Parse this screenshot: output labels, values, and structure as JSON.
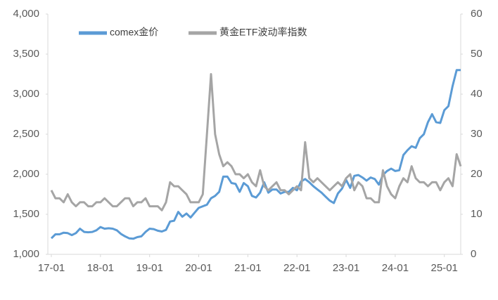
{
  "chart_data": {
    "type": "line",
    "categories": [
      "17-01",
      null,
      null,
      null,
      null,
      null,
      null,
      null,
      null,
      null,
      null,
      null,
      "18-01",
      null,
      null,
      null,
      null,
      null,
      null,
      null,
      null,
      null,
      null,
      null,
      "19-01",
      null,
      null,
      null,
      null,
      null,
      null,
      null,
      null,
      null,
      null,
      null,
      "20-01",
      null,
      null,
      null,
      null,
      null,
      null,
      null,
      null,
      null,
      null,
      null,
      "21-01",
      null,
      null,
      null,
      null,
      null,
      null,
      null,
      null,
      null,
      null,
      null,
      "22-01",
      null,
      null,
      null,
      null,
      null,
      null,
      null,
      null,
      null,
      null,
      null,
      "23-01",
      null,
      null,
      null,
      null,
      null,
      null,
      null,
      null,
      null,
      null,
      null,
      "24-01",
      null,
      null,
      null,
      null,
      null,
      null,
      null,
      null,
      null,
      null,
      null,
      "25-01",
      null,
      null,
      null,
      null
    ],
    "series": [
      {
        "name": "comex金价",
        "color": "#5b9bd5",
        "values": [
          1200,
          1250,
          1250,
          1270,
          1265,
          1240,
          1265,
          1320,
          1280,
          1275,
          1280,
          1300,
          1340,
          1320,
          1325,
          1320,
          1300,
          1255,
          1225,
          1200,
          1195,
          1215,
          1225,
          1280,
          1320,
          1315,
          1295,
          1285,
          1305,
          1410,
          1420,
          1530,
          1470,
          1510,
          1460,
          1520,
          1580,
          1600,
          1620,
          1700,
          1730,
          1780,
          1970,
          1970,
          1890,
          1880,
          1780,
          1890,
          1850,
          1730,
          1710,
          1770,
          1900,
          1770,
          1810,
          1810,
          1760,
          1780,
          1780,
          1830,
          1800,
          1910,
          1940,
          1900,
          1850,
          1810,
          1770,
          1720,
          1670,
          1640,
          1760,
          1820,
          1930,
          1830,
          1980,
          1990,
          1960,
          1920,
          1960,
          1940,
          1870,
          1990,
          2040,
          2070,
          2040,
          2050,
          2240,
          2300,
          2350,
          2330,
          2450,
          2500,
          2650,
          2750,
          2650,
          2640,
          2800,
          2850,
          3100,
          3300,
          3300
        ]
      },
      {
        "name": "黄金ETF波动率指数",
        "color": "#a5a5a5",
        "axis": "y2",
        "values": [
          16,
          14,
          14,
          13,
          15,
          13,
          12,
          13,
          13,
          12,
          12,
          13,
          13,
          14,
          13,
          12,
          12,
          13,
          14,
          14,
          12,
          13,
          13,
          14,
          12,
          12,
          12,
          11,
          13,
          18,
          17,
          17,
          16,
          15,
          13,
          13,
          13,
          15,
          30,
          45,
          30,
          25,
          22,
          23,
          22,
          20,
          20,
          19,
          20,
          18,
          17,
          21,
          17,
          16,
          17,
          18,
          16,
          16,
          15,
          16,
          17,
          16,
          28,
          19,
          18,
          19,
          18,
          17,
          16,
          17,
          18,
          17,
          19,
          20,
          16,
          18,
          17,
          14,
          14,
          13,
          13,
          21,
          17,
          15,
          14,
          17,
          19,
          18,
          22,
          19,
          18,
          18,
          17,
          18,
          18,
          16,
          18,
          19,
          17,
          25,
          22
        ]
      }
    ],
    "ylim": [
      1000,
      4000
    ],
    "yticks": [
      {
        "value": 1000,
        "label": "1,000"
      },
      {
        "value": 1500,
        "label": "1,500"
      },
      {
        "value": 2000,
        "label": "2,000"
      },
      {
        "value": 2500,
        "label": "2,500"
      },
      {
        "value": 3000,
        "label": "3,000"
      },
      {
        "value": 3500,
        "label": "3,500"
      },
      {
        "value": 4000,
        "label": "4,000"
      }
    ],
    "y2lim": [
      0,
      60
    ],
    "y2ticks": [
      0,
      10,
      20,
      30,
      40,
      50,
      60
    ],
    "grid": false,
    "legend": "top"
  }
}
